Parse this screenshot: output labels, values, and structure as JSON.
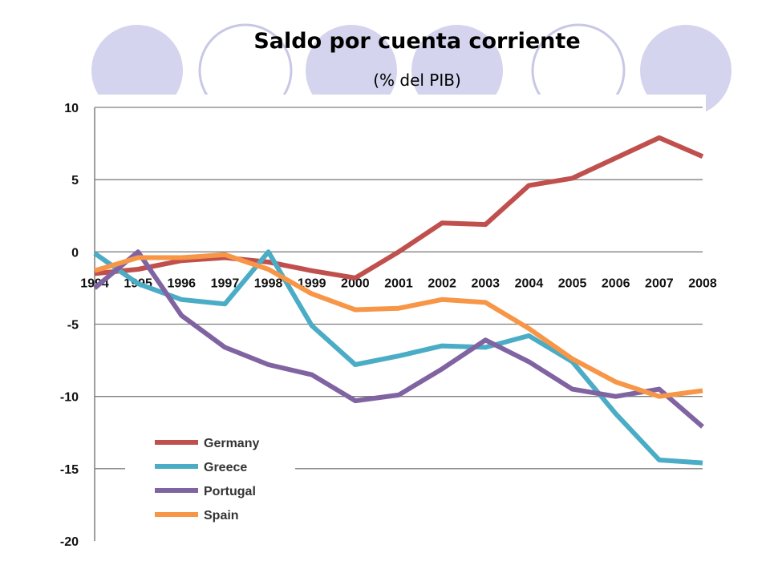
{
  "slide": {
    "title": "Saldo por cuenta corriente",
    "subtitle": "(% del PIB)"
  },
  "colors": {
    "circle_fill": "#d4d4ee",
    "circle_outline": "#c8c8e6",
    "gridline": "#7f7f7f"
  },
  "chart_data": {
    "type": "line",
    "title": "",
    "xlabel": "",
    "ylabel": "",
    "x": [
      "1994",
      "1995",
      "1996",
      "1997",
      "1998",
      "1999",
      "2000",
      "2001",
      "2002",
      "2003",
      "2004",
      "2005",
      "2006",
      "2007",
      "2008"
    ],
    "ylim": [
      -20,
      10
    ],
    "yticks": [
      10,
      5,
      0,
      -5,
      -10,
      -15,
      -20
    ],
    "grid": true,
    "legend_position": "bottom-left",
    "series": [
      {
        "name": "Germany",
        "color": "#c0504d",
        "values": [
          -1.5,
          -1.2,
          -0.6,
          -0.4,
          -0.7,
          -1.3,
          -1.8,
          0.0,
          2.0,
          1.9,
          4.6,
          5.1,
          6.5,
          7.9,
          6.6
        ]
      },
      {
        "name": "Greece",
        "color": "#4bacc6",
        "values": [
          -0.1,
          -2.2,
          -3.3,
          -3.6,
          0.0,
          -5.1,
          -7.8,
          -7.2,
          -6.5,
          -6.6,
          -5.8,
          -7.6,
          -11.2,
          -14.4,
          -14.6
        ]
      },
      {
        "name": "Portugal",
        "color": "#8064a2",
        "values": [
          -2.5,
          0.0,
          -4.4,
          -6.6,
          -7.8,
          -8.5,
          -10.3,
          -9.9,
          -8.1,
          -6.1,
          -7.6,
          -9.5,
          -10.0,
          -9.5,
          -12.1
        ]
      },
      {
        "name": "Spain",
        "color": "#f79646",
        "values": [
          -1.3,
          -0.4,
          -0.4,
          -0.2,
          -1.2,
          -2.9,
          -4.0,
          -3.9,
          -3.3,
          -3.5,
          -5.3,
          -7.4,
          -9.0,
          -10.0,
          -9.6
        ]
      }
    ]
  }
}
